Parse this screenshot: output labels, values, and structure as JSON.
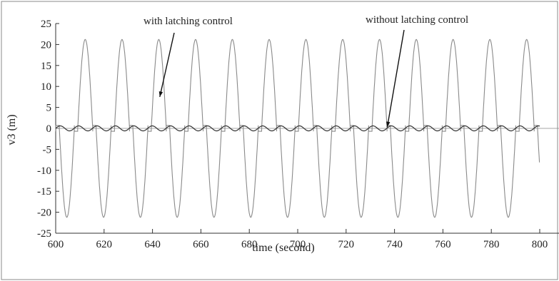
{
  "chart_data": {
    "type": "line",
    "xlabel": "time (second)",
    "ylabel": "v3 (m)",
    "xlim": [
      600,
      800
    ],
    "ylim": [
      -25,
      25
    ],
    "x_ticks": [
      600,
      620,
      640,
      660,
      680,
      700,
      720,
      740,
      760,
      780,
      800
    ],
    "y_ticks": [
      25,
      20,
      15,
      10,
      5,
      0,
      -5,
      -10,
      -15,
      -20,
      -25
    ],
    "x_tick_labels": [
      "600",
      "620",
      "640",
      "660",
      "680",
      "700",
      "720",
      "740",
      "760",
      "780",
      "800"
    ],
    "y_tick_labels": [
      "25",
      "20",
      "15",
      "10",
      "5",
      "0",
      "-5",
      "-10",
      "-15",
      "-20",
      "-25"
    ],
    "grid": false,
    "series": [
      {
        "name": "with latching control",
        "color": "#8a8a8a",
        "description_values": {
          "period": 15.2,
          "peak": 21.2,
          "trough": -21.2,
          "first_peak_time": 612.2
        }
      },
      {
        "name": "without latching control",
        "color": "#333333",
        "description_values": {
          "amplitude": 0.6,
          "period": 7.6
        }
      }
    ],
    "annotations": [
      {
        "text": "with latching control",
        "points_to": [
          643,
          7.5
        ]
      },
      {
        "text": "without latching control",
        "points_to": [
          737,
          0.3
        ]
      }
    ]
  }
}
